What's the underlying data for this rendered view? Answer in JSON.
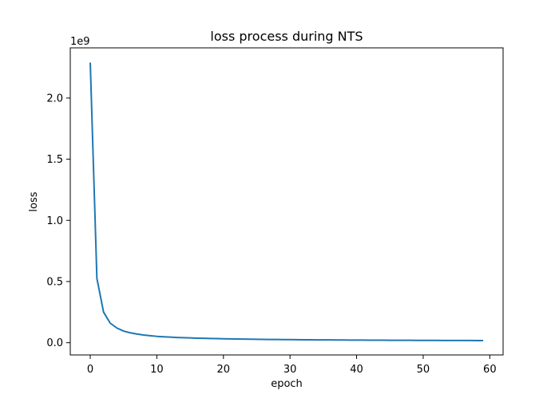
{
  "chart_data": {
    "type": "line",
    "title": "loss process during NTS",
    "xlabel": "epoch",
    "ylabel": "loss",
    "y_offset_label": "1e9",
    "xlim": [
      -3,
      62
    ],
    "ylim": [
      -100000000.0,
      2410000000.0
    ],
    "x_ticks": [
      0,
      10,
      20,
      30,
      40,
      50,
      60
    ],
    "x_tick_labels": [
      "0",
      "10",
      "20",
      "30",
      "40",
      "50",
      "60"
    ],
    "y_ticks": [
      0,
      500000000,
      1000000000,
      1500000000,
      2000000000
    ],
    "y_tick_labels": [
      "0.0",
      "0.5",
      "1.0",
      "1.5",
      "2.0"
    ],
    "grid": false,
    "line_color": "#1f77b4",
    "series": [
      {
        "x": [
          0,
          1,
          2,
          3,
          4,
          5,
          6,
          7,
          8,
          9,
          10,
          11,
          12,
          13,
          14,
          15,
          16,
          17,
          18,
          19,
          20,
          21,
          22,
          23,
          24,
          25,
          26,
          27,
          28,
          29,
          30,
          31,
          32,
          33,
          34,
          35,
          36,
          37,
          38,
          39,
          40,
          41,
          42,
          43,
          44,
          45,
          46,
          47,
          48,
          49,
          50,
          51,
          52,
          53,
          54,
          55,
          56,
          57,
          58,
          59
        ],
        "values": [
          2290000000,
          525000000,
          250000000,
          160000000,
          120000000,
          95000000,
          81000000,
          71000000,
          63000000,
          57000000,
          52000000,
          48500000,
          45500000,
          43000000,
          41000000,
          39000000,
          37300000,
          35800000,
          34500000,
          33300000,
          32200000,
          31200000,
          30300000,
          29500000,
          28700000,
          28000000,
          27300000,
          26700000,
          26100000,
          25600000,
          25100000,
          24600000,
          24200000,
          23800000,
          23400000,
          23000000,
          22700000,
          22300000,
          22000000,
          21700000,
          21400000,
          21100000,
          20900000,
          20600000,
          20400000,
          20100000,
          19900000,
          19700000,
          19500000,
          19300000,
          19100000,
          18900000,
          18700000,
          18500000,
          18400000,
          18200000,
          18000000,
          17900000,
          17700000,
          17600000
        ]
      }
    ]
  }
}
